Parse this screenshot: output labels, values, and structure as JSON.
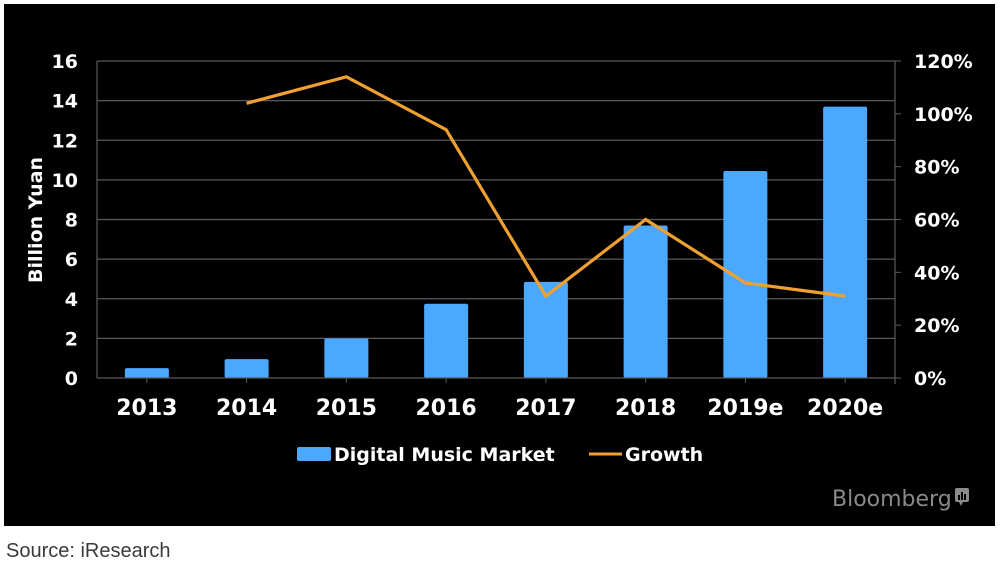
{
  "chart_data": {
    "type": "bar",
    "title": "",
    "xlabel": "",
    "ylabel": "Billion Yuan",
    "y2label": "",
    "categories": [
      "2013",
      "2014",
      "2015",
      "2016",
      "2017",
      "2018",
      "2019e",
      "2020e"
    ],
    "ylim": [
      0,
      16
    ],
    "y_ticks": [
      "0",
      "2",
      "4",
      "6",
      "8",
      "10",
      "12",
      "14",
      "16"
    ],
    "y2lim": [
      0,
      120
    ],
    "y2_ticks": [
      "0%",
      "20%",
      "40%",
      "60%",
      "80%",
      "100%",
      "120%"
    ],
    "grid": true,
    "legend_position": "bottom",
    "series": [
      {
        "name": "Digital Music Market",
        "type": "bar",
        "axis": "left",
        "color": "#4aa8ff",
        "values": [
          0.5,
          0.95,
          2.0,
          3.75,
          4.85,
          7.7,
          10.45,
          13.7
        ]
      },
      {
        "name": "Growth",
        "type": "line",
        "axis": "right",
        "color": "#f0a030",
        "values": [
          null,
          104,
          114,
          94,
          31,
          60,
          36,
          31
        ]
      }
    ]
  },
  "watermark": {
    "text": "Bloomberg"
  },
  "source": "Source: iResearch",
  "colors": {
    "background": "#000000",
    "grid": "#5a5a5a",
    "text": "#ffffff",
    "watermark": "#8a8a8a"
  }
}
